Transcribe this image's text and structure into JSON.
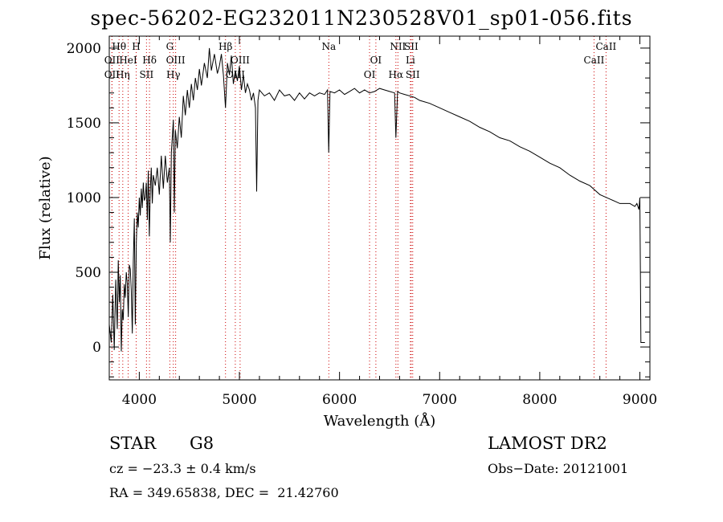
{
  "chart_data": {
    "type": "line",
    "title": "spec-56202-EG232011N230528V01_sp01-056.fits",
    "xlabel": "Wavelength (Å)",
    "ylabel": "Flux (relative)",
    "xlim": [
      3700,
      9100
    ],
    "ylim": [
      -220,
      2080
    ],
    "x_ticks": [
      4000,
      5000,
      6000,
      7000,
      8000,
      9000
    ],
    "y_ticks": [
      0,
      500,
      1000,
      1500,
      2000
    ],
    "grid": false,
    "series": [
      {
        "values": [
          [
            3700,
            150
          ],
          [
            3720,
            30
          ],
          [
            3735,
            350
          ],
          [
            3750,
            -20
          ],
          [
            3765,
            450
          ],
          [
            3780,
            120
          ],
          [
            3790,
            580
          ],
          [
            3800,
            300
          ],
          [
            3810,
            480
          ],
          [
            3820,
            -30
          ],
          [
            3830,
            250
          ],
          [
            3840,
            180
          ],
          [
            3850,
            420
          ],
          [
            3860,
            330
          ],
          [
            3870,
            500
          ],
          [
            3880,
            430
          ],
          [
            3890,
            200
          ],
          [
            3900,
            550
          ],
          [
            3910,
            520
          ],
          [
            3920,
            380
          ],
          [
            3930,
            90
          ],
          [
            3940,
            560
          ],
          [
            3950,
            860
          ],
          [
            3960,
            150
          ],
          [
            3970,
            700
          ],
          [
            3980,
            900
          ],
          [
            3990,
            800
          ],
          [
            4000,
            1000
          ],
          [
            4010,
            880
          ],
          [
            4020,
            1060
          ],
          [
            4030,
            930
          ],
          [
            4040,
            1100
          ],
          [
            4050,
            980
          ],
          [
            4060,
            1000
          ],
          [
            4070,
            1100
          ],
          [
            4080,
            850
          ],
          [
            4090,
            1180
          ],
          [
            4100,
            740
          ],
          [
            4110,
            1050
          ],
          [
            4120,
            1200
          ],
          [
            4130,
            960
          ],
          [
            4140,
            1150
          ],
          [
            4160,
            1080
          ],
          [
            4180,
            1200
          ],
          [
            4200,
            1020
          ],
          [
            4220,
            1280
          ],
          [
            4240,
            1060
          ],
          [
            4260,
            1280
          ],
          [
            4280,
            1100
          ],
          [
            4300,
            1200
          ],
          [
            4310,
            700
          ],
          [
            4320,
            1300
          ],
          [
            4340,
            1520
          ],
          [
            4350,
            900
          ],
          [
            4360,
            1450
          ],
          [
            4380,
            1330
          ],
          [
            4400,
            1540
          ],
          [
            4420,
            1400
          ],
          [
            4440,
            1680
          ],
          [
            4460,
            1550
          ],
          [
            4480,
            1720
          ],
          [
            4500,
            1600
          ],
          [
            4520,
            1760
          ],
          [
            4540,
            1650
          ],
          [
            4560,
            1800
          ],
          [
            4580,
            1720
          ],
          [
            4600,
            1860
          ],
          [
            4620,
            1750
          ],
          [
            4650,
            1900
          ],
          [
            4680,
            1800
          ],
          [
            4700,
            2000
          ],
          [
            4720,
            1850
          ],
          [
            4750,
            1960
          ],
          [
            4780,
            1830
          ],
          [
            4800,
            1880
          ],
          [
            4820,
            1960
          ],
          [
            4840,
            1820
          ],
          [
            4861,
            1600
          ],
          [
            4880,
            1900
          ],
          [
            4900,
            1820
          ],
          [
            4920,
            1950
          ],
          [
            4940,
            1760
          ],
          [
            4960,
            1850
          ],
          [
            4980,
            1780
          ],
          [
            5000,
            1880
          ],
          [
            5020,
            1720
          ],
          [
            5040,
            1820
          ],
          [
            5060,
            1700
          ],
          [
            5080,
            1760
          ],
          [
            5100,
            1720
          ],
          [
            5120,
            1650
          ],
          [
            5140,
            1700
          ],
          [
            5160,
            1600
          ],
          [
            5172,
            1040
          ],
          [
            5185,
            1650
          ],
          [
            5200,
            1720
          ],
          [
            5250,
            1680
          ],
          [
            5300,
            1700
          ],
          [
            5350,
            1650
          ],
          [
            5400,
            1720
          ],
          [
            5450,
            1680
          ],
          [
            5500,
            1690
          ],
          [
            5550,
            1650
          ],
          [
            5600,
            1700
          ],
          [
            5650,
            1660
          ],
          [
            5700,
            1700
          ],
          [
            5750,
            1680
          ],
          [
            5800,
            1700
          ],
          [
            5850,
            1690
          ],
          [
            5880,
            1720
          ],
          [
            5892,
            1300
          ],
          [
            5905,
            1710
          ],
          [
            5950,
            1700
          ],
          [
            6000,
            1720
          ],
          [
            6050,
            1690
          ],
          [
            6100,
            1710
          ],
          [
            6150,
            1730
          ],
          [
            6200,
            1700
          ],
          [
            6250,
            1720
          ],
          [
            6300,
            1700
          ],
          [
            6350,
            1710
          ],
          [
            6400,
            1730
          ],
          [
            6450,
            1720
          ],
          [
            6500,
            1710
          ],
          [
            6550,
            1700
          ],
          [
            6563,
            1400
          ],
          [
            6580,
            1710
          ],
          [
            6600,
            1700
          ],
          [
            6650,
            1690
          ],
          [
            6700,
            1680
          ],
          [
            6750,
            1670
          ],
          [
            6800,
            1650
          ],
          [
            6900,
            1630
          ],
          [
            7000,
            1600
          ],
          [
            7100,
            1570
          ],
          [
            7200,
            1540
          ],
          [
            7300,
            1510
          ],
          [
            7400,
            1470
          ],
          [
            7500,
            1440
          ],
          [
            7600,
            1400
          ],
          [
            7700,
            1380
          ],
          [
            7800,
            1340
          ],
          [
            7900,
            1310
          ],
          [
            8000,
            1270
          ],
          [
            8100,
            1230
          ],
          [
            8200,
            1200
          ],
          [
            8300,
            1150
          ],
          [
            8400,
            1110
          ],
          [
            8500,
            1080
          ],
          [
            8600,
            1020
          ],
          [
            8700,
            990
          ],
          [
            8800,
            960
          ],
          [
            8900,
            960
          ],
          [
            8950,
            940
          ],
          [
            8970,
            960
          ],
          [
            8990,
            920
          ],
          [
            9000,
            1000
          ],
          [
            9010,
            30
          ],
          [
            9050,
            30
          ]
        ]
      }
    ],
    "lines": [
      {
        "label": "Hθ",
        "x": 3798,
        "row": 1
      },
      {
        "label": "OII",
        "x": 3727,
        "row": 2
      },
      {
        "label": "OII",
        "x": 3727,
        "row": 3
      },
      {
        "label": "H",
        "x": 3969,
        "row": 1
      },
      {
        "label": "HeI",
        "x": 3889,
        "row": 2
      },
      {
        "label": "Hη",
        "x": 3835,
        "row": 3
      },
      {
        "label": "Hδ",
        "x": 4102,
        "row": 2
      },
      {
        "label": "SII",
        "x": 4072,
        "row": 3
      },
      {
        "label": "G",
        "x": 4305,
        "row": 1
      },
      {
        "label": "OIII",
        "x": 4363,
        "row": 2
      },
      {
        "label": "Hγ",
        "x": 4340,
        "row": 3
      },
      {
        "label": "Hβ",
        "x": 4861,
        "row": 1
      },
      {
        "label": "OIII",
        "x": 5007,
        "row": 2
      },
      {
        "label": "OIII",
        "x": 4959,
        "row": 3
      },
      {
        "label": "Na",
        "x": 5893,
        "row": 1
      },
      {
        "label": "OI",
        "x": 6363,
        "row": 2
      },
      {
        "label": "OI",
        "x": 6300,
        "row": 3
      },
      {
        "label": "NII",
        "x": 6583,
        "row": 1
      },
      {
        "label": "SII",
        "x": 6716,
        "row": 1
      },
      {
        "label": "Li",
        "x": 6708,
        "row": 2
      },
      {
        "label": "Hα",
        "x": 6563,
        "row": 3
      },
      {
        "label": "SII",
        "x": 6731,
        "row": 3
      },
      {
        "label": "CaII",
        "x": 8662,
        "row": 1
      },
      {
        "label": "CaII",
        "x": 8542,
        "row": 2
      }
    ],
    "line_color": "#cc0000"
  },
  "footer": {
    "object_class": "STAR",
    "subclass": "G8",
    "survey": "LAMOST DR2",
    "velocity": "cz = −23.3 ± 0.4 km/s",
    "obs_date": "Obs−Date: 20121001",
    "coordinates": "RA = 349.65838, DEC =  21.42760"
  }
}
